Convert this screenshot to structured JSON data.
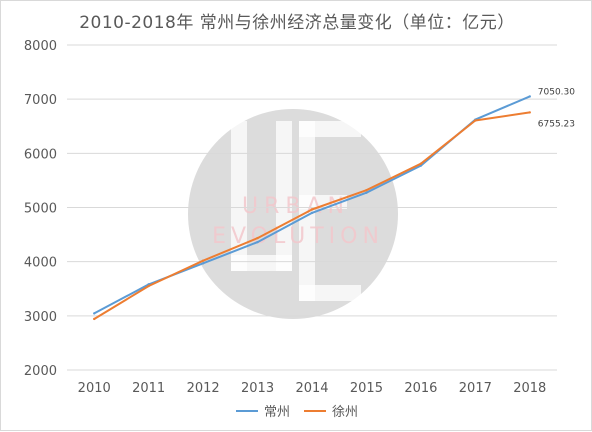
{
  "chart_data": {
    "type": "line",
    "title": "2010-2018年 常州与徐州经济总量变化（单位：亿元）",
    "categories": [
      "2010",
      "2011",
      "2012",
      "2013",
      "2014",
      "2015",
      "2016",
      "2017",
      "2018"
    ],
    "ylim": [
      2000,
      8000
    ],
    "yticks": [
      "2000",
      "3000",
      "4000",
      "5000",
      "6000",
      "7000",
      "8000"
    ],
    "grid": true,
    "legend_position": "bottom",
    "series": [
      {
        "name": "常州",
        "color": "#5b9bd5",
        "values": [
          3045,
          3581,
          3970,
          4361,
          4901,
          5273,
          5774,
          6622,
          7050.3
        ],
        "end_label": "7050.30"
      },
      {
        "name": "徐州",
        "color": "#ed7d31",
        "values": [
          2942,
          3551,
          4017,
          4435,
          4963,
          5320,
          5808,
          6606,
          6755.23
        ],
        "end_label": "6755.23"
      }
    ],
    "watermark": {
      "logo_letters": "UE",
      "line1": "URBAN",
      "line2": "EVOLUTION"
    }
  }
}
